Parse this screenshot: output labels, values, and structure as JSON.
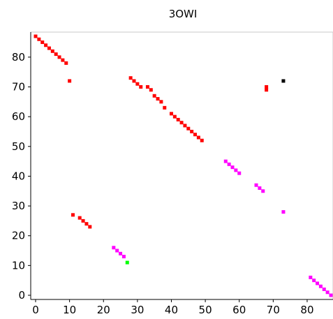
{
  "chart_data": {
    "type": "scatter",
    "title": "3OWI",
    "xlabel": "",
    "ylabel": "",
    "xlim": [
      -1,
      87
    ],
    "ylim": [
      -1,
      89
    ],
    "x_ticks": [
      0,
      10,
      20,
      30,
      40,
      50,
      60,
      70,
      80
    ],
    "y_ticks": [
      0,
      10,
      20,
      30,
      40,
      50,
      60,
      70,
      80
    ],
    "grid": false,
    "legend": "none",
    "series": [
      {
        "color": "#ff0000",
        "points": [
          [
            0,
            87
          ],
          [
            1,
            86
          ],
          [
            2,
            85
          ],
          [
            3,
            84
          ],
          [
            4,
            83
          ],
          [
            5,
            82
          ],
          [
            6,
            81
          ],
          [
            7,
            80
          ],
          [
            8,
            79
          ],
          [
            9,
            78
          ],
          [
            10,
            72
          ],
          [
            11,
            27
          ],
          [
            13,
            26
          ],
          [
            14,
            25
          ],
          [
            15,
            24
          ],
          [
            16,
            23
          ],
          [
            28,
            73
          ],
          [
            29,
            72
          ],
          [
            30,
            71
          ],
          [
            31,
            70
          ],
          [
            33,
            70
          ],
          [
            34,
            69
          ],
          [
            35,
            67
          ],
          [
            36,
            66
          ],
          [
            37,
            65
          ],
          [
            38,
            63
          ],
          [
            40,
            61
          ],
          [
            41,
            60
          ],
          [
            42,
            59
          ],
          [
            43,
            58
          ],
          [
            44,
            57
          ],
          [
            45,
            56
          ],
          [
            46,
            55
          ],
          [
            47,
            54
          ],
          [
            48,
            53
          ],
          [
            49,
            52
          ],
          [
            68,
            70
          ],
          [
            68,
            69
          ]
        ]
      },
      {
        "color": "#ff00ff",
        "points": [
          [
            23,
            16
          ],
          [
            24,
            15
          ],
          [
            25,
            14
          ],
          [
            26,
            13
          ],
          [
            56,
            45
          ],
          [
            57,
            44
          ],
          [
            58,
            43
          ],
          [
            59,
            42
          ],
          [
            60,
            41
          ],
          [
            65,
            37
          ],
          [
            66,
            36
          ],
          [
            67,
            35
          ],
          [
            73,
            28
          ],
          [
            81,
            6
          ],
          [
            82,
            5
          ],
          [
            83,
            4
          ],
          [
            84,
            3
          ],
          [
            85,
            2
          ],
          [
            86,
            1
          ],
          [
            87,
            0
          ]
        ]
      },
      {
        "color": "#00ff00",
        "points": [
          [
            27,
            11
          ]
        ]
      },
      {
        "color": "#000000",
        "points": [
          [
            73,
            72
          ]
        ]
      }
    ]
  }
}
